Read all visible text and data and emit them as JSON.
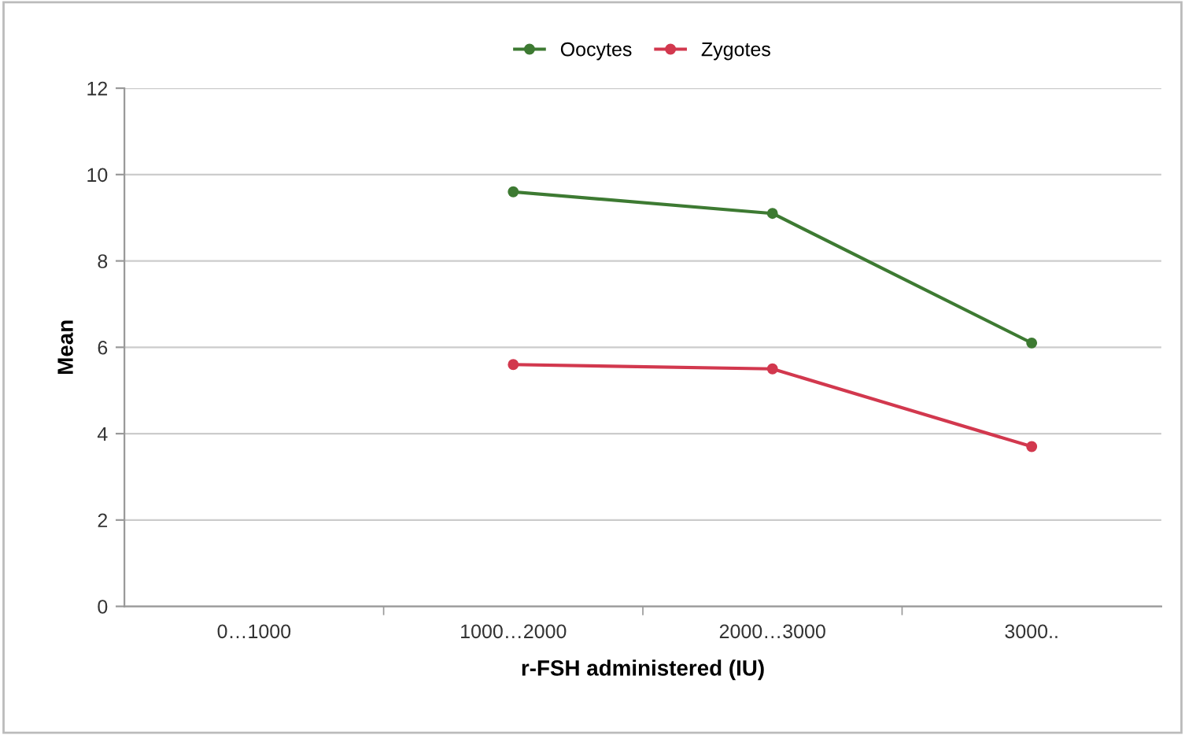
{
  "chart_data": {
    "type": "line",
    "xlabel": "r-FSH administered (IU)",
    "ylabel": "Mean",
    "categories": [
      "0…1000",
      "1000…2000",
      "2000…3000",
      "3000.."
    ],
    "series": [
      {
        "name": "Oocytes",
        "color": "#3d7a32",
        "values": [
          null,
          9.6,
          9.1,
          6.1
        ]
      },
      {
        "name": "Zygotes",
        "color": "#d2384e",
        "values": [
          null,
          5.6,
          5.5,
          3.7
        ]
      }
    ],
    "ylim": [
      0,
      12
    ],
    "yticks": [
      0,
      2,
      4,
      6,
      8,
      10,
      12
    ],
    "grid": "y",
    "legend": "top",
    "marker": "circle",
    "line_style": "solid"
  }
}
